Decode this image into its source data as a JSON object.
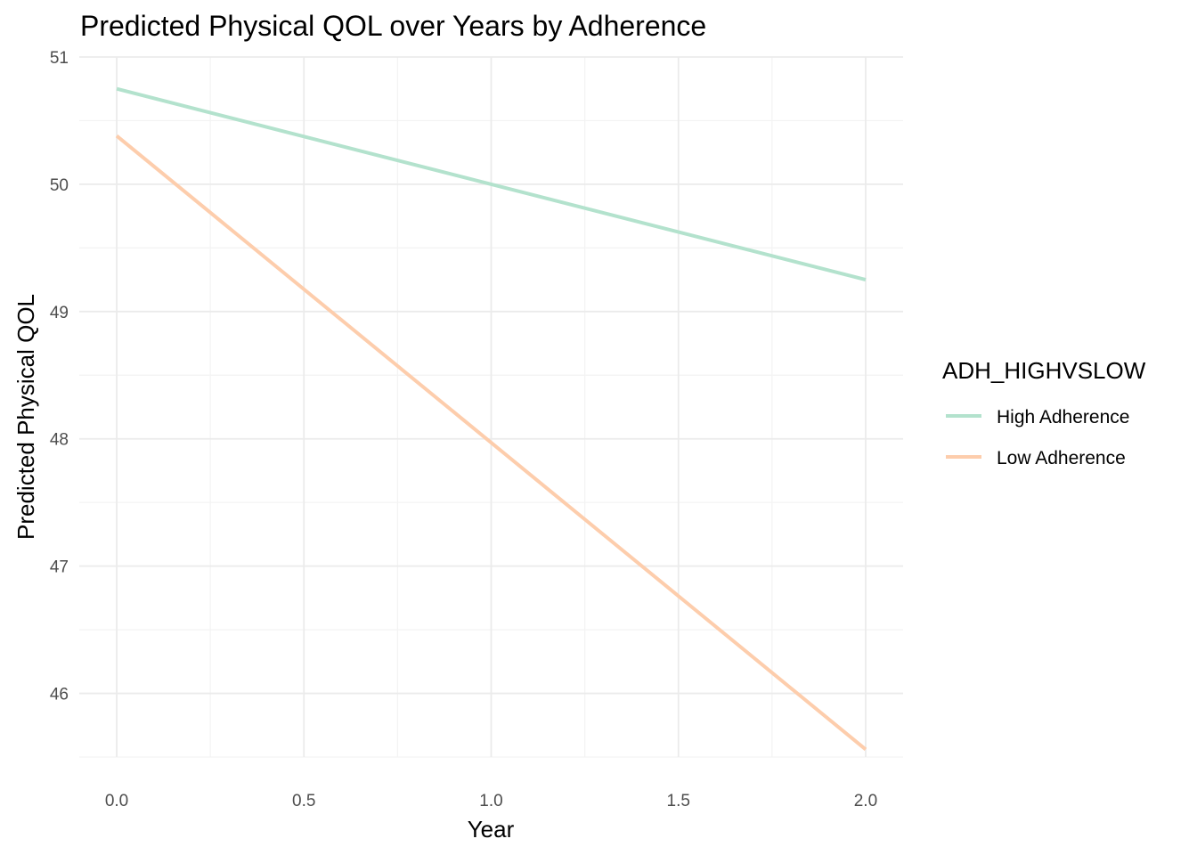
{
  "chart_data": {
    "type": "line",
    "title": "Predicted Physical QOL over Years by Adherence",
    "xlabel": "Year",
    "ylabel": "Predicted Physical QOL",
    "x": [
      0.0,
      2.0
    ],
    "xlim": [
      -0.1,
      2.1
    ],
    "ylim": [
      45.5,
      51.0
    ],
    "xticks": [
      0.0,
      0.5,
      1.0,
      1.5,
      2.0
    ],
    "xtick_labels": [
      "0.0",
      "0.5",
      "1.0",
      "1.5",
      "2.0"
    ],
    "yticks": [
      46,
      47,
      48,
      49,
      50,
      51
    ],
    "ytick_labels": [
      "46",
      "47",
      "48",
      "49",
      "50",
      "51"
    ],
    "grid": true,
    "legend": {
      "title": "ADH_HIGHVSLOW",
      "position": "right"
    },
    "series": [
      {
        "name": "High Adherence",
        "color": "#b3e2cd",
        "values": [
          50.75,
          49.25
        ]
      },
      {
        "name": "Low Adherence",
        "color": "#fdcdac",
        "values": [
          50.38,
          45.56
        ]
      }
    ]
  }
}
